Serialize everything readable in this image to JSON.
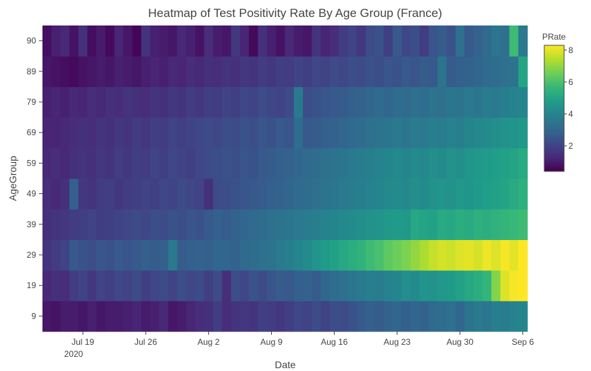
{
  "chart_data": {
    "type": "heatmap",
    "title": "Heatmap of Test Positivity Rate By Age Group (France)",
    "xlabel": "Date",
    "ylabel": "AgeGroup",
    "x_ticks": [
      "Jul 19",
      "Jul 26",
      "Aug 2",
      "Aug 9",
      "Aug 16",
      "Aug 23",
      "Aug 30",
      "Sep 6"
    ],
    "x_tick_year": "2020",
    "x_start": "Jul 15",
    "x_end": "Sep 6",
    "y_categories": [
      "9",
      "19",
      "29",
      "39",
      "49",
      "59",
      "69",
      "79",
      "89",
      "90"
    ],
    "colorbar": {
      "title": "PRate",
      "ticks": [
        "2",
        "4",
        "6",
        "8"
      ],
      "range": [
        0.4,
        8.3
      ]
    },
    "colorscale": [
      "#440154",
      "#482878",
      "#3e4989",
      "#31688e",
      "#26828e",
      "#1f9e89",
      "#35b779",
      "#6ece58",
      "#b5de2b",
      "#fde725"
    ],
    "series": [
      {
        "name": "9",
        "values": [
          0.9,
          0.8,
          1.0,
          1.0,
          0.9,
          1.1,
          0.9,
          1.0,
          1.0,
          1.1,
          1.2,
          1.0,
          1.1,
          1.3,
          0.9,
          1.0,
          1.2,
          1.4,
          1.5,
          1.8,
          1.4,
          1.6,
          1.7,
          1.6,
          1.9,
          1.8,
          1.7,
          1.9,
          2.1,
          2.0,
          2.2,
          2.0,
          2.3,
          2.2,
          2.4,
          2.6,
          2.8,
          2.7,
          2.9,
          3.0,
          2.8,
          3.0,
          2.9,
          3.1,
          3.2,
          3.3,
          3.0,
          3.4,
          3.6,
          3.5,
          3.8,
          3.7,
          3.9,
          4.0
        ]
      },
      {
        "name": "19",
        "values": [
          1.3,
          1.5,
          1.4,
          1.8,
          2.0,
          1.7,
          2.0,
          1.9,
          2.1,
          2.0,
          2.2,
          1.9,
          2.1,
          2.2,
          2.0,
          2.3,
          2.1,
          2.2,
          1.9,
          2.2,
          1.4,
          2.3,
          2.1,
          2.4,
          2.2,
          2.5,
          2.7,
          2.6,
          2.8,
          2.9,
          2.7,
          3.0,
          3.2,
          3.3,
          3.5,
          3.6,
          3.8,
          3.7,
          3.9,
          4.0,
          4.3,
          4.2,
          4.5,
          4.4,
          4.6,
          4.7,
          4.9,
          5.1,
          5.3,
          5.6,
          6.8,
          7.9,
          8.2,
          8.3
        ]
      },
      {
        "name": "29",
        "values": [
          1.6,
          1.8,
          2.0,
          2.6,
          2.4,
          2.3,
          2.5,
          2.4,
          2.6,
          2.5,
          2.6,
          2.8,
          2.7,
          2.8,
          3.6,
          2.7,
          2.8,
          2.9,
          2.8,
          3.0,
          3.0,
          2.9,
          3.1,
          3.2,
          3.3,
          3.4,
          3.6,
          3.8,
          4.0,
          4.2,
          4.5,
          4.7,
          4.9,
          5.1,
          5.3,
          5.5,
          5.8,
          6.0,
          6.3,
          6.5,
          6.7,
          7.0,
          7.3,
          7.6,
          7.8,
          7.7,
          7.9,
          8.0,
          7.8,
          8.1,
          7.9,
          8.2,
          8.0,
          8.3
        ]
      },
      {
        "name": "39",
        "values": [
          1.5,
          1.6,
          1.7,
          1.8,
          1.9,
          2.0,
          1.8,
          1.9,
          2.0,
          2.1,
          2.2,
          2.1,
          2.3,
          2.2,
          2.4,
          2.3,
          2.5,
          2.4,
          2.6,
          2.8,
          2.7,
          2.9,
          3.0,
          3.1,
          3.2,
          3.3,
          3.4,
          3.5,
          3.6,
          3.7,
          3.8,
          3.9,
          4.0,
          4.1,
          4.2,
          4.3,
          4.4,
          4.5,
          4.6,
          4.7,
          4.6,
          5.1,
          5.0,
          4.9,
          5.2,
          5.1,
          5.3,
          5.2,
          5.4,
          5.3,
          5.5,
          5.6,
          5.7,
          5.8
        ]
      },
      {
        "name": "49",
        "values": [
          1.4,
          1.3,
          1.5,
          2.8,
          1.7,
          1.6,
          1.8,
          1.9,
          1.7,
          1.8,
          1.9,
          2.0,
          1.9,
          2.1,
          2.0,
          2.2,
          2.1,
          2.0,
          1.5,
          2.2,
          2.3,
          2.4,
          2.5,
          2.6,
          2.7,
          2.8,
          2.9,
          3.0,
          3.1,
          3.2,
          3.3,
          3.4,
          3.5,
          3.6,
          3.7,
          3.8,
          3.9,
          4.0,
          4.1,
          4.2,
          4.1,
          4.3,
          4.2,
          4.4,
          4.5,
          4.4,
          4.6,
          4.5,
          4.7,
          4.8,
          4.9,
          5.0,
          5.2,
          5.4
        ]
      },
      {
        "name": "59",
        "values": [
          1.3,
          1.4,
          1.3,
          1.5,
          1.6,
          1.5,
          1.7,
          1.6,
          1.8,
          1.7,
          1.9,
          1.8,
          2.0,
          1.9,
          2.1,
          2.0,
          1.9,
          2.1,
          2.2,
          2.3,
          2.4,
          2.3,
          2.5,
          2.4,
          2.6,
          2.7,
          2.8,
          2.9,
          3.0,
          3.1,
          3.2,
          3.3,
          3.4,
          3.5,
          3.6,
          3.7,
          3.8,
          3.9,
          4.0,
          4.1,
          4.0,
          4.2,
          4.1,
          4.3,
          4.2,
          4.4,
          4.3,
          4.5,
          4.6,
          4.7,
          4.8,
          4.9,
          5.0,
          5.2
        ]
      },
      {
        "name": "69",
        "values": [
          1.2,
          1.2,
          1.3,
          1.4,
          1.5,
          1.4,
          1.6,
          1.5,
          1.7,
          1.6,
          1.8,
          1.7,
          1.9,
          1.8,
          2.0,
          1.9,
          2.0,
          2.1,
          2.2,
          2.1,
          2.3,
          2.2,
          2.4,
          2.3,
          2.5,
          2.4,
          2.6,
          2.5,
          3.2,
          2.6,
          2.7,
          2.8,
          2.9,
          3.0,
          3.1,
          3.2,
          3.3,
          3.4,
          3.5,
          3.6,
          3.5,
          3.7,
          3.6,
          3.8,
          3.7,
          3.9,
          3.8,
          4.0,
          4.1,
          4.2,
          4.3,
          4.4,
          4.5,
          4.6
        ]
      },
      {
        "name": "79",
        "values": [
          1.1,
          1.2,
          1.1,
          1.3,
          1.2,
          1.4,
          1.3,
          1.5,
          1.4,
          1.6,
          1.5,
          1.4,
          1.6,
          1.5,
          1.7,
          1.6,
          1.8,
          1.7,
          1.9,
          1.8,
          2.0,
          1.9,
          2.1,
          2.0,
          2.2,
          2.1,
          2.0,
          2.2,
          3.6,
          2.3,
          2.4,
          2.5,
          2.6,
          2.7,
          2.8,
          2.9,
          3.0,
          3.1,
          3.0,
          3.2,
          3.1,
          3.3,
          3.2,
          3.4,
          3.3,
          3.5,
          3.4,
          3.6,
          3.5,
          3.7,
          3.6,
          3.8,
          3.9,
          4.0
        ]
      },
      {
        "name": "89",
        "values": [
          0.9,
          0.8,
          0.7,
          0.6,
          0.8,
          0.9,
          1.0,
          0.9,
          1.1,
          1.0,
          0.9,
          1.1,
          1.2,
          1.1,
          1.3,
          1.2,
          1.4,
          1.3,
          1.5,
          1.4,
          1.6,
          1.5,
          1.7,
          1.6,
          1.8,
          1.7,
          1.9,
          1.8,
          2.0,
          1.9,
          2.1,
          2.0,
          2.2,
          2.1,
          2.3,
          2.2,
          2.4,
          2.3,
          2.5,
          2.4,
          2.6,
          2.5,
          2.7,
          2.6,
          3.4,
          2.7,
          2.8,
          2.9,
          3.0,
          3.1,
          3.2,
          3.3,
          3.4,
          5.0
        ]
      },
      {
        "name": "90",
        "values": [
          0.7,
          1.1,
          1.3,
          0.8,
          1.5,
          0.7,
          1.0,
          0.6,
          1.2,
          0.9,
          0.5,
          1.6,
          1.1,
          1.0,
          0.9,
          1.3,
          1.1,
          0.8,
          1.4,
          1.0,
          0.9,
          1.7,
          1.2,
          0.6,
          1.5,
          1.1,
          0.8,
          1.3,
          1.0,
          0.9,
          1.6,
          1.2,
          1.4,
          1.8,
          2.0,
          1.7,
          2.2,
          2.4,
          1.9,
          2.6,
          2.1,
          2.3,
          1.8,
          2.5,
          2.7,
          2.4,
          3.3,
          2.6,
          2.9,
          3.1,
          3.5,
          3.3,
          5.8,
          3.6
        ]
      }
    ]
  }
}
